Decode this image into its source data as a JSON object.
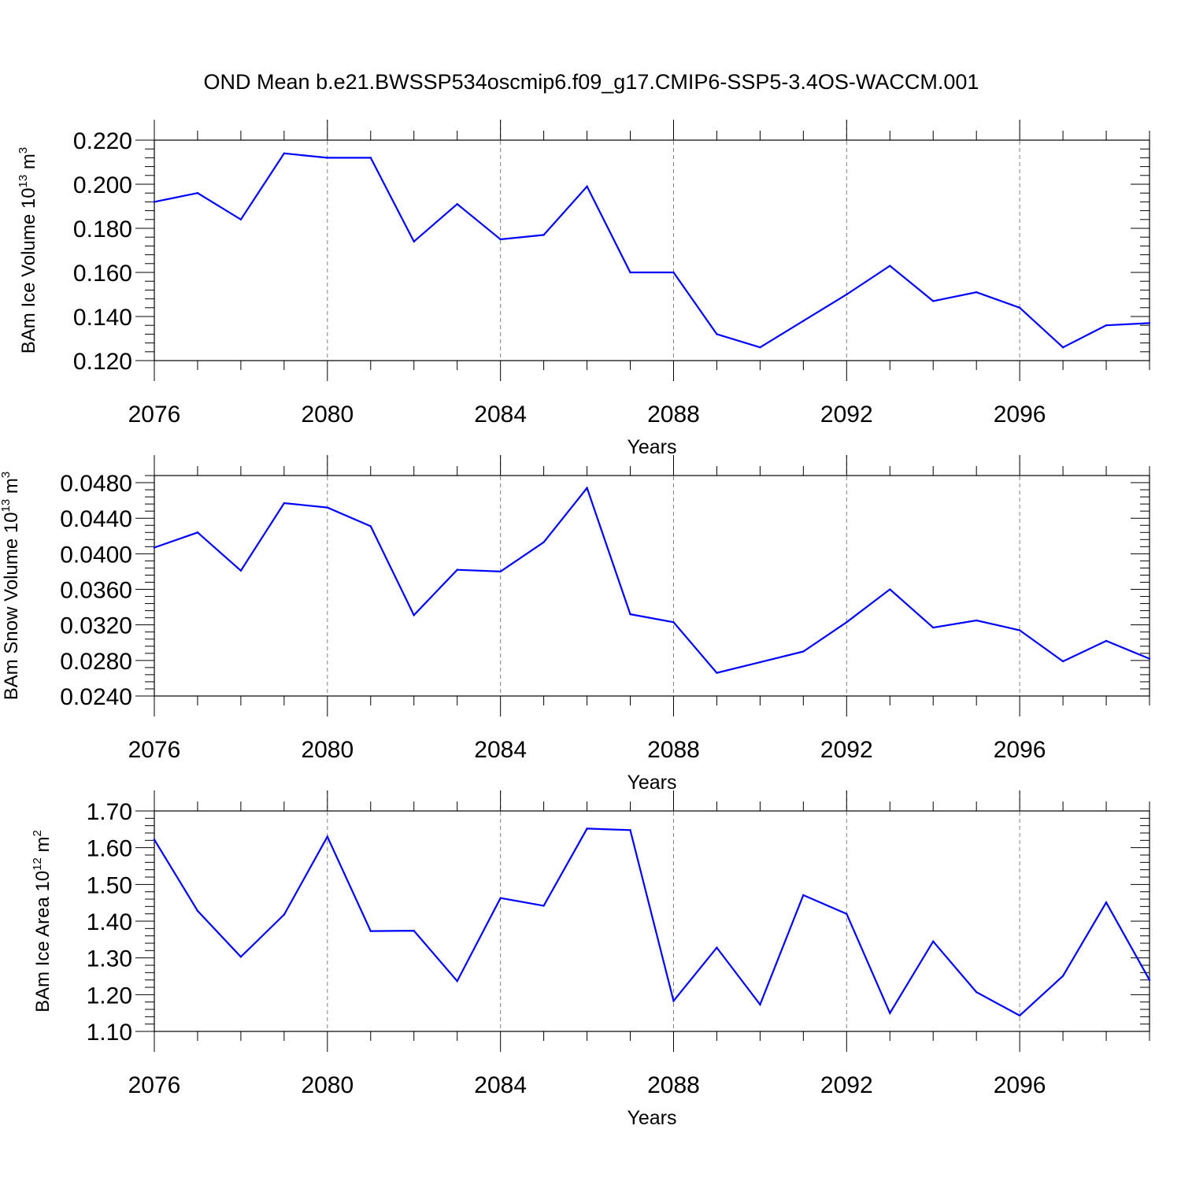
{
  "title": "OND Mean b.e21.BWSSP534oscmip6.f09_g17.CMIP6-SSP5-3.4OS-WACCM.001",
  "colors": {
    "line": "#0000ff",
    "axis": "#000000",
    "grid": "#808080",
    "background": "#ffffff"
  },
  "chart_data": [
    {
      "type": "line",
      "ylabel_main": "BAm Ice Volume 10",
      "ylabel_exp": "13",
      "ylabel_unit": " m",
      "ylabel_unit_exp": "3",
      "xlabel": "Years",
      "xlim": [
        2076,
        2099
      ],
      "ylim": [
        0.12,
        0.22
      ],
      "yticks": [
        "0.120",
        "0.140",
        "0.160",
        "0.180",
        "0.200",
        "0.220"
      ],
      "xticks": [
        "2076",
        "2080",
        "2084",
        "2088",
        "2092",
        "2096"
      ],
      "grid": "dashed vertical at major x ticks",
      "x": [
        2076,
        2077,
        2078,
        2079,
        2080,
        2081,
        2082,
        2083,
        2084,
        2085,
        2086,
        2087,
        2088,
        2089,
        2090,
        2091,
        2092,
        2093,
        2094,
        2095,
        2096,
        2097,
        2098,
        2099
      ],
      "values": [
        0.192,
        0.196,
        0.184,
        0.214,
        0.212,
        0.212,
        0.174,
        0.191,
        0.175,
        0.177,
        0.199,
        0.16,
        0.16,
        0.132,
        0.126,
        0.138,
        0.15,
        0.163,
        0.147,
        0.151,
        0.144,
        0.126,
        0.136,
        0.137
      ]
    },
    {
      "type": "line",
      "ylabel_main": "BAm Snow Volume 10",
      "ylabel_exp": "13",
      "ylabel_unit": " m",
      "ylabel_unit_exp": "3",
      "xlabel": "Years",
      "xlim": [
        2076,
        2099
      ],
      "ylim": [
        0.024,
        0.0488
      ],
      "yticks": [
        "0.0240",
        "0.0280",
        "0.0320",
        "0.0360",
        "0.0400",
        "0.0440",
        "0.0480"
      ],
      "xticks": [
        "2076",
        "2080",
        "2084",
        "2088",
        "2092",
        "2096"
      ],
      "grid": "dashed vertical at major x ticks",
      "x": [
        2076,
        2077,
        2078,
        2079,
        2080,
        2081,
        2082,
        2083,
        2084,
        2085,
        2086,
        2087,
        2088,
        2089,
        2090,
        2091,
        2092,
        2093,
        2094,
        2095,
        2096,
        2097,
        2098,
        2099
      ],
      "values": [
        0.0407,
        0.0424,
        0.0381,
        0.0457,
        0.0452,
        0.0431,
        0.0331,
        0.0382,
        0.038,
        0.0413,
        0.0474,
        0.0332,
        0.0323,
        0.0266,
        0.0278,
        0.029,
        0.0323,
        0.036,
        0.0317,
        0.0325,
        0.0314,
        0.0279,
        0.0302,
        0.0282
      ]
    },
    {
      "type": "line",
      "ylabel_main": "BAm Ice Area 10",
      "ylabel_exp": "12",
      "ylabel_unit": " m",
      "ylabel_unit_exp": "2",
      "xlabel": "Years",
      "xlim": [
        2076,
        2099
      ],
      "ylim": [
        1.1,
        1.7
      ],
      "yticks": [
        "1.10",
        "1.20",
        "1.30",
        "1.40",
        "1.50",
        "1.60",
        "1.70"
      ],
      "xticks": [
        "2076",
        "2080",
        "2084",
        "2088",
        "2092",
        "2096"
      ],
      "grid": "dashed vertical at major x ticks",
      "x": [
        2076,
        2077,
        2078,
        2079,
        2080,
        2081,
        2082,
        2083,
        2084,
        2085,
        2086,
        2087,
        2088,
        2089,
        2090,
        2091,
        2092,
        2093,
        2094,
        2095,
        2096,
        2097,
        2098,
        2099
      ],
      "values": [
        1.622,
        1.428,
        1.303,
        1.418,
        1.63,
        1.373,
        1.374,
        1.237,
        1.463,
        1.442,
        1.652,
        1.648,
        1.183,
        1.328,
        1.173,
        1.471,
        1.42,
        1.15,
        1.345,
        1.207,
        1.143,
        1.251,
        1.451,
        1.24
      ]
    }
  ]
}
